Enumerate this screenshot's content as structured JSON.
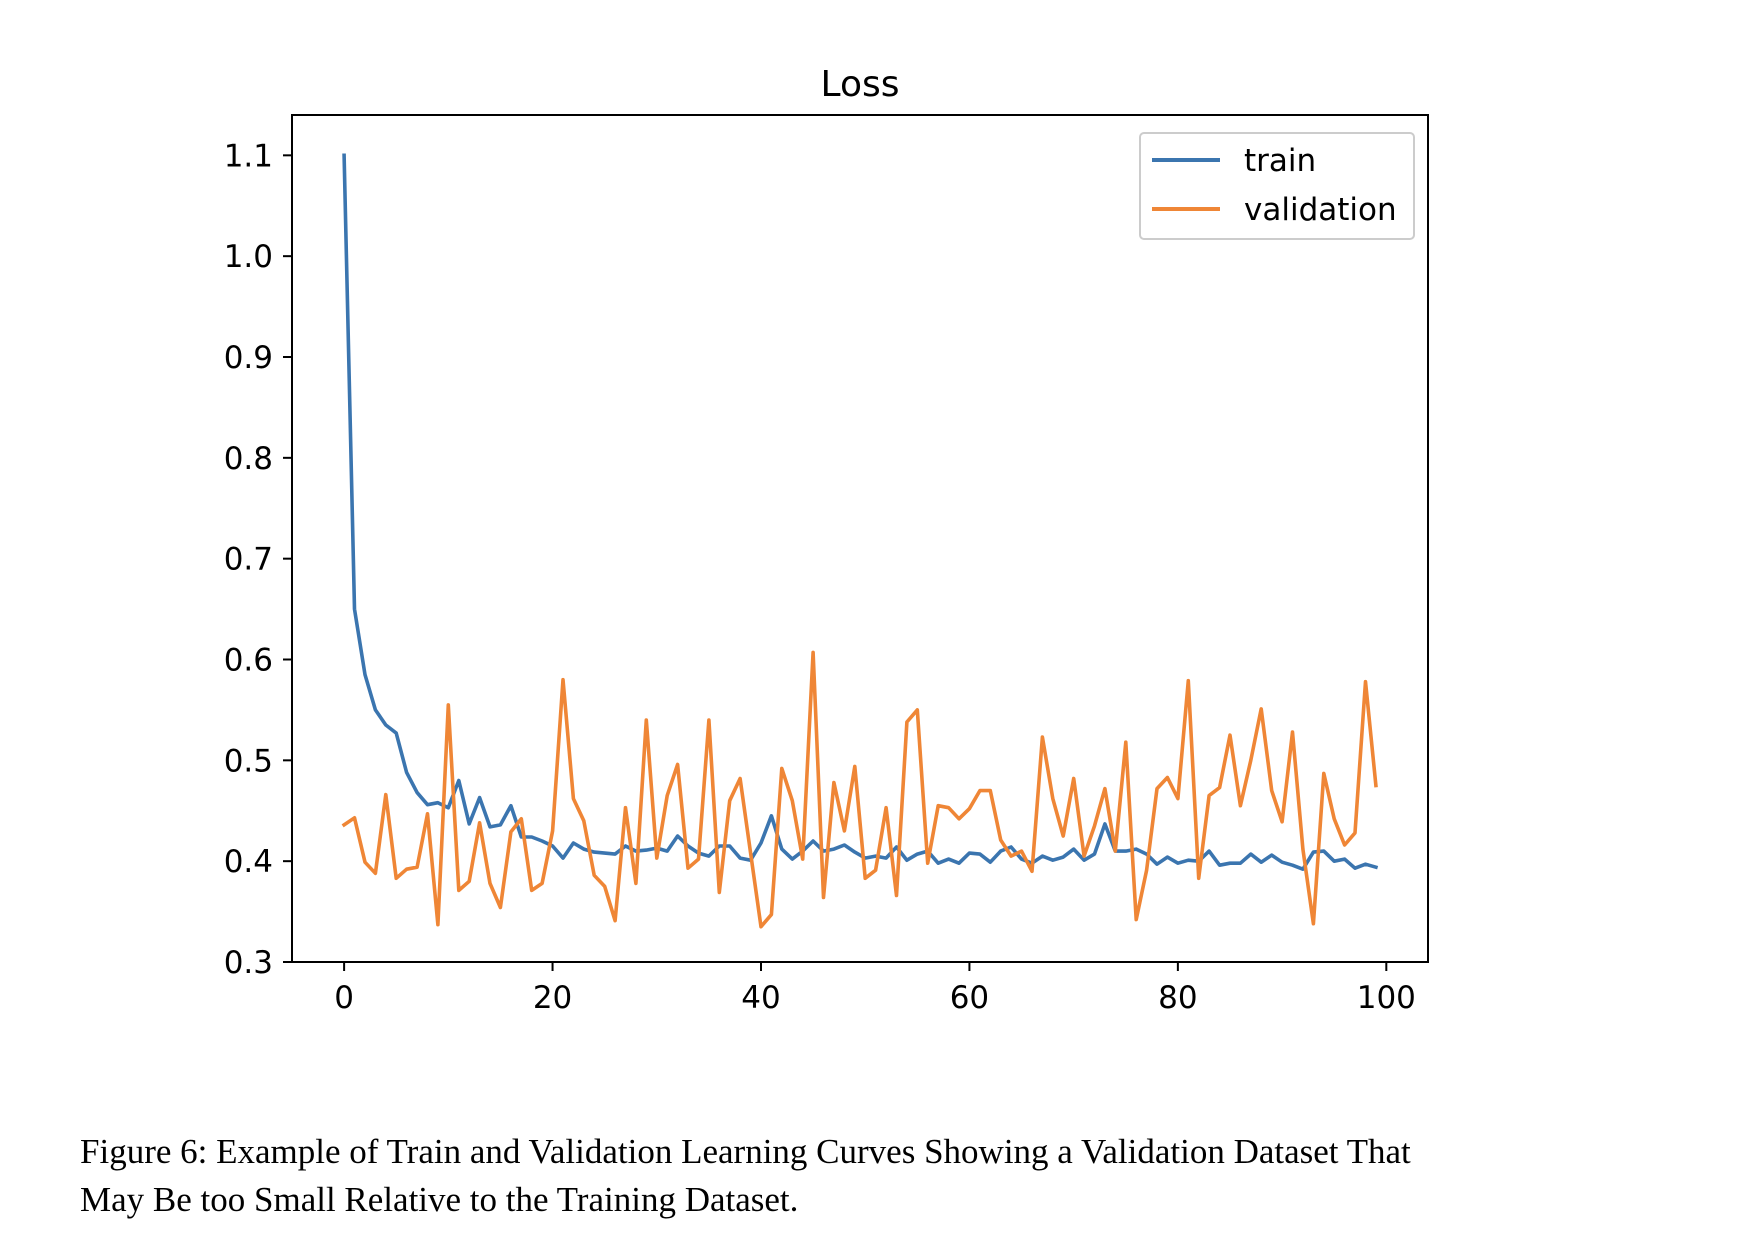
{
  "chart_data": {
    "type": "line",
    "title": "Loss",
    "xlabel": "",
    "ylabel": "",
    "xlim": [
      -5,
      104
    ],
    "ylim": [
      0.3,
      1.14
    ],
    "xticks": [
      0,
      20,
      40,
      60,
      80,
      100
    ],
    "xtick_labels": [
      "0",
      "20",
      "40",
      "60",
      "80",
      "100"
    ],
    "yticks": [
      0.3,
      0.4,
      0.5,
      0.6,
      0.7,
      0.8,
      0.9,
      1.0,
      1.1
    ],
    "ytick_labels": [
      "0.3",
      "0.4",
      "0.5",
      "0.6",
      "0.7",
      "0.8",
      "0.9",
      "1.0",
      "1.1"
    ],
    "grid": false,
    "legend_position": "top-right",
    "x": [
      0,
      1,
      2,
      3,
      4,
      5,
      6,
      7,
      8,
      9,
      10,
      11,
      12,
      13,
      14,
      15,
      16,
      17,
      18,
      19,
      20,
      21,
      22,
      23,
      24,
      25,
      26,
      27,
      28,
      29,
      30,
      31,
      32,
      33,
      34,
      35,
      36,
      37,
      38,
      39,
      40,
      41,
      42,
      43,
      44,
      45,
      46,
      47,
      48,
      49,
      50,
      51,
      52,
      53,
      54,
      55,
      56,
      57,
      58,
      59,
      60,
      61,
      62,
      63,
      64,
      65,
      66,
      67,
      68,
      69,
      70,
      71,
      72,
      73,
      74,
      75,
      76,
      77,
      78,
      79,
      80,
      81,
      82,
      83,
      84,
      85,
      86,
      87,
      88,
      89,
      90,
      91,
      92,
      93,
      94,
      95,
      96,
      97,
      98,
      99
    ],
    "series": [
      {
        "name": "train",
        "color": "#3b75af",
        "values": [
          1.1,
          0.65,
          0.585,
          0.55,
          0.535,
          0.527,
          0.488,
          0.468,
          0.456,
          0.458,
          0.453,
          0.48,
          0.437,
          0.463,
          0.434,
          0.436,
          0.455,
          0.424,
          0.424,
          0.42,
          0.415,
          0.403,
          0.418,
          0.412,
          0.409,
          0.408,
          0.407,
          0.415,
          0.41,
          0.411,
          0.413,
          0.41,
          0.425,
          0.415,
          0.408,
          0.405,
          0.415,
          0.415,
          0.403,
          0.401,
          0.418,
          0.445,
          0.412,
          0.402,
          0.41,
          0.42,
          0.41,
          0.412,
          0.416,
          0.409,
          0.403,
          0.405,
          0.403,
          0.414,
          0.401,
          0.407,
          0.41,
          0.398,
          0.402,
          0.398,
          0.408,
          0.407,
          0.399,
          0.41,
          0.414,
          0.402,
          0.398,
          0.405,
          0.401,
          0.404,
          0.412,
          0.401,
          0.407,
          0.437,
          0.41,
          0.41,
          0.412,
          0.407,
          0.397,
          0.404,
          0.398,
          0.401,
          0.4,
          0.41,
          0.396,
          0.398,
          0.398,
          0.407,
          0.399,
          0.406,
          0.399,
          0.396,
          0.392,
          0.409,
          0.41,
          0.4,
          0.402,
          0.393,
          0.397,
          0.394
        ]
      },
      {
        "name": "validation",
        "color": "#ef8636",
        "values": [
          0.436,
          0.443,
          0.399,
          0.388,
          0.466,
          0.383,
          0.392,
          0.394,
          0.447,
          0.337,
          0.555,
          0.371,
          0.38,
          0.438,
          0.378,
          0.354,
          0.429,
          0.442,
          0.371,
          0.378,
          0.43,
          0.58,
          0.462,
          0.44,
          0.386,
          0.375,
          0.341,
          0.453,
          0.378,
          0.54,
          0.403,
          0.465,
          0.496,
          0.393,
          0.402,
          0.54,
          0.369,
          0.46,
          0.482,
          0.408,
          0.335,
          0.347,
          0.492,
          0.46,
          0.402,
          0.607,
          0.364,
          0.478,
          0.43,
          0.494,
          0.383,
          0.391,
          0.453,
          0.366,
          0.538,
          0.55,
          0.398,
          0.455,
          0.453,
          0.442,
          0.452,
          0.47,
          0.47,
          0.421,
          0.405,
          0.41,
          0.39,
          0.523,
          0.462,
          0.425,
          0.482,
          0.405,
          0.435,
          0.472,
          0.41,
          0.518,
          0.342,
          0.391,
          0.472,
          0.483,
          0.462,
          0.579,
          0.383,
          0.465,
          0.473,
          0.525,
          0.455,
          0.5,
          0.551,
          0.47,
          0.439,
          0.528,
          0.412,
          0.338,
          0.487,
          0.442,
          0.416,
          0.428,
          0.578,
          0.475
        ]
      }
    ]
  },
  "caption": {
    "line1": "Figure 6: Example of Train and Validation Learning Curves Showing a Validation Dataset That",
    "line2": "May Be too Small Relative to the Training Dataset."
  }
}
